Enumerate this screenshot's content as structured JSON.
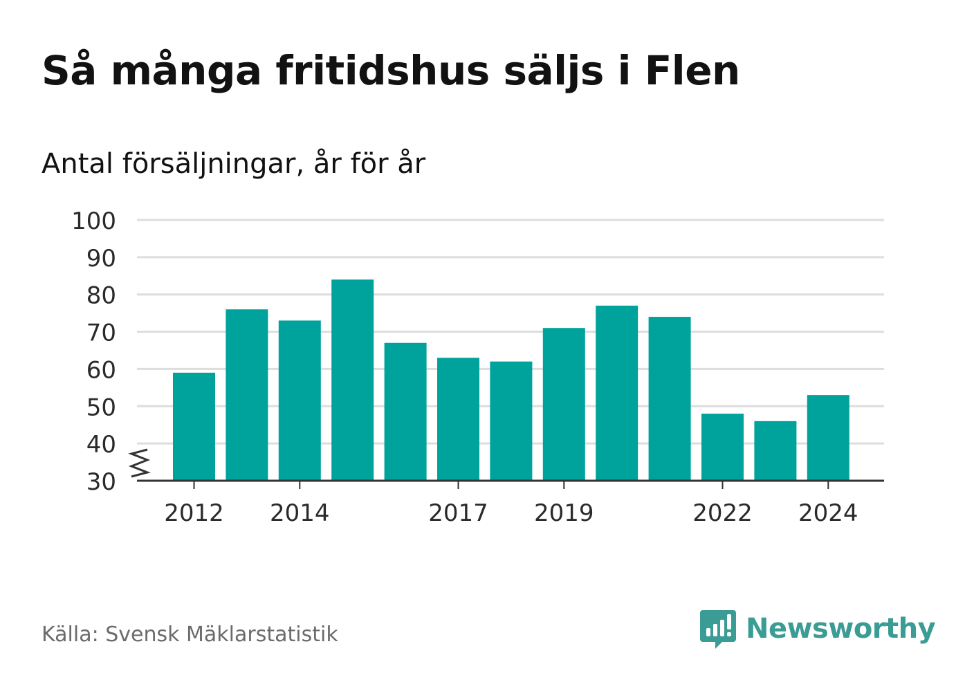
{
  "title": "Så många fritidshus säljs i Flen",
  "subtitle": "Antal försäljningar, år för år",
  "source": "Källa: Svensk Mäklarstatistik",
  "brand": {
    "name": "Newsworthy",
    "icon": "speech-bubble-bar-chart-icon",
    "color": "#3a9c94"
  },
  "colors": {
    "bar": "#00a39b",
    "grid": "#dddddd",
    "axis": "#333333",
    "tick_text": "#2a2a2a"
  },
  "chart_data": {
    "type": "bar",
    "categories": [
      "2012",
      "2013",
      "2014",
      "2015",
      "2016",
      "2017",
      "2018",
      "2019",
      "2020",
      "2021",
      "2022",
      "2023",
      "2024"
    ],
    "values": [
      59,
      76,
      73,
      84,
      67,
      63,
      62,
      71,
      77,
      74,
      48,
      46,
      53
    ],
    "x_tick_labels": [
      "2012",
      "",
      "2014",
      "",
      "",
      "2017",
      "",
      "2019",
      "",
      "",
      "2022",
      "",
      "2024"
    ],
    "y_ticks": [
      "30",
      "40",
      "50",
      "60",
      "70",
      "80",
      "90",
      "100"
    ],
    "ylim": [
      30,
      100
    ],
    "axis_break": true,
    "grid": true,
    "legend": "none"
  }
}
